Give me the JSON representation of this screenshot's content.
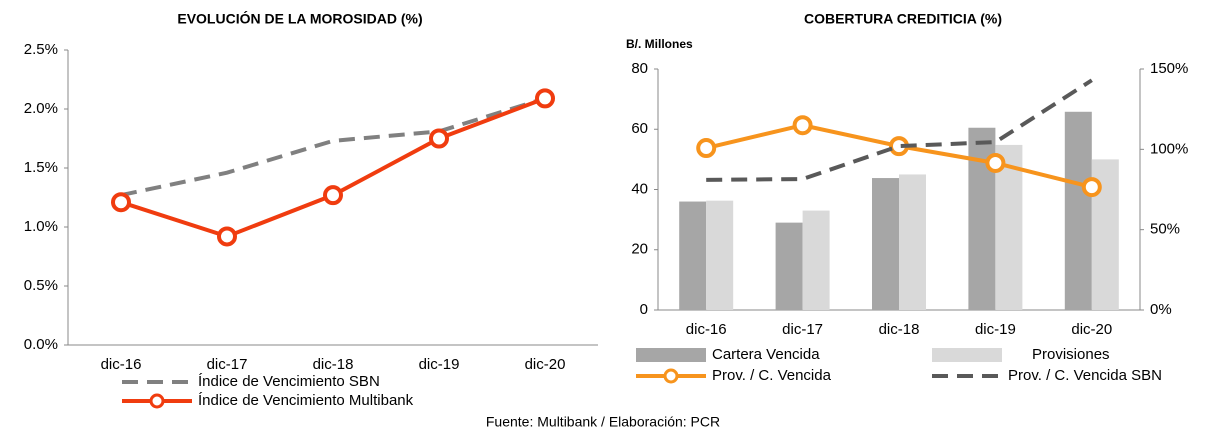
{
  "chart_data": [
    {
      "type": "line",
      "title": "EVOLUCIÓN DE LA MOROSIDAD (%)",
      "categories": [
        "dic-16",
        "dic-17",
        "dic-18",
        "dic-19",
        "dic-20"
      ],
      "ylim": [
        0,
        2.5
      ],
      "yticks": [
        {
          "value": 0,
          "label": "0.0%"
        },
        {
          "value": 0.5,
          "label": "0.5%"
        },
        {
          "value": 1,
          "label": "1.0%"
        },
        {
          "value": 1.5,
          "label": "1.5%"
        },
        {
          "value": 2,
          "label": "2.0%"
        },
        {
          "value": 2.5,
          "label": "2.5%"
        }
      ],
      "series": [
        {
          "name": "Índice de Vencimiento SBN",
          "color": "#808080",
          "dash": true,
          "marker": false,
          "values": [
            1.27,
            1.46,
            1.73,
            1.81,
            2.09
          ]
        },
        {
          "name": "Índice de Vencimiento Multibank",
          "color": "#f03c0f",
          "dash": false,
          "marker": true,
          "values": [
            1.21,
            0.92,
            1.27,
            1.75,
            2.09
          ]
        }
      ]
    },
    {
      "type": "bar",
      "title": "COBERTURA CREDITICIA (%)",
      "ylabel": "B/. Millones",
      "categories": [
        "dic-16",
        "dic-17",
        "dic-18",
        "dic-19",
        "dic-20"
      ],
      "ylim": [
        0,
        80
      ],
      "yticks": [
        0,
        20,
        40,
        60,
        80
      ],
      "y2lim": [
        0,
        150
      ],
      "y2ticks": [
        {
          "value": 0,
          "label": "0%"
        },
        {
          "value": 50,
          "label": "50%"
        },
        {
          "value": 100,
          "label": "100%"
        },
        {
          "value": 150,
          "label": "150%"
        }
      ],
      "series": [
        {
          "name": "Cartera Vencida",
          "color": "#a6a6a6",
          "type": "bar",
          "values": [
            36,
            29,
            43.8,
            60.5,
            65.8
          ]
        },
        {
          "name": "Provisiones",
          "color": "#d9d9d9",
          "type": "bar",
          "values": [
            36.3,
            33,
            45,
            54.8,
            50
          ]
        },
        {
          "name": "Prov. / C. Vencida",
          "color": "#f7941d",
          "type": "line",
          "axis": "y2",
          "dash": false,
          "marker": true,
          "values": [
            100.8,
            115,
            102,
            91.5,
            76.5
          ]
        },
        {
          "name": "Prov. / C. Vencida SBN",
          "color": "#595959",
          "type": "line",
          "axis": "y2",
          "dash": true,
          "marker": false,
          "values": [
            81,
            81.5,
            102,
            104.5,
            143
          ]
        }
      ]
    }
  ],
  "source": "Fuente: Multibank / Elaboración: PCR"
}
